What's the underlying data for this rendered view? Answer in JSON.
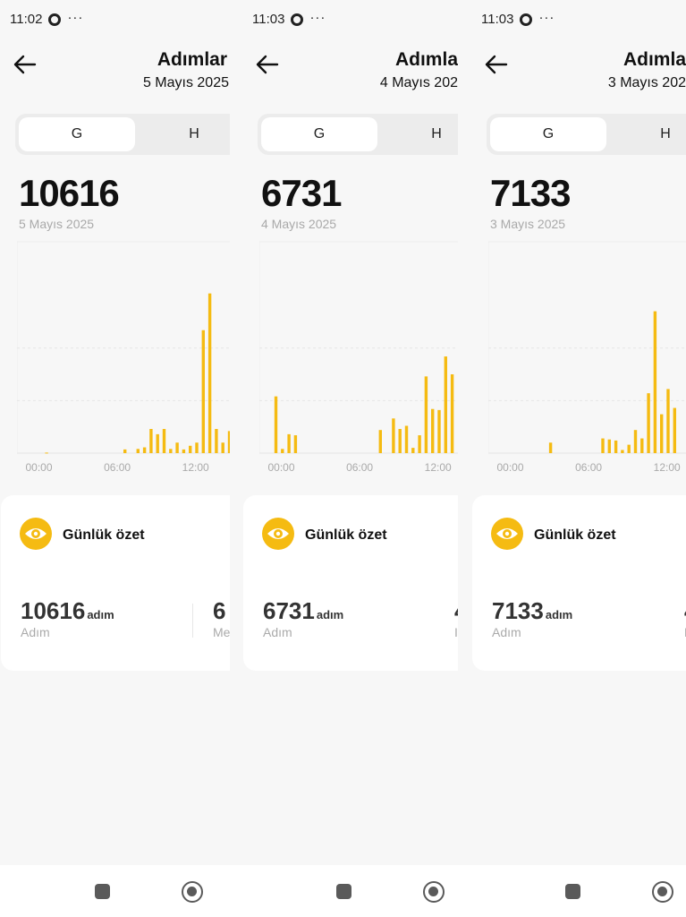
{
  "accent_color": "#f5bb12",
  "panels": [
    {
      "status_time": "11:02",
      "status_dots": "···",
      "title": "Adımlar",
      "date": "5 Mayıs 2025",
      "tabs": {
        "day": "G",
        "week": "H"
      },
      "steps": "10616",
      "steps_date": "5 Mayıs 2025",
      "summary": {
        "title": "Günlük özet",
        "steps_value": "10616",
        "steps_unit": "adım",
        "steps_label": "Adım",
        "second_value": "6",
        "second_label": "Me"
      }
    },
    {
      "status_time": "11:03",
      "status_dots": "···",
      "title": "Adımla",
      "date": "4 Mayıs 202",
      "tabs": {
        "day": "G",
        "week": "H"
      },
      "steps": "6731",
      "steps_date": "4 Mayıs 2025",
      "summary": {
        "title": "Günlük özet",
        "steps_value": "6731",
        "steps_unit": "adım",
        "steps_label": "Adım",
        "second_value": "4",
        "second_label": "I"
      }
    },
    {
      "status_time": "11:03",
      "status_dots": "···",
      "title": "Adımla",
      "date": "3 Mayıs 202",
      "tabs": {
        "day": "G",
        "week": "H"
      },
      "steps": "7133",
      "steps_date": "3 Mayıs 2025",
      "summary": {
        "title": "Günlük özet",
        "steps_value": "7133",
        "steps_unit": "adım",
        "steps_label": "Adım",
        "second_value": "4",
        "second_label": "N"
      }
    }
  ],
  "chart_data": [
    {
      "type": "bar",
      "x_unit": "hour",
      "x_tick_labels": [
        "00:00",
        "06:00",
        "12:00"
      ],
      "x_ticks_hours": [
        0,
        6,
        12
      ],
      "y_range": [
        0,
        1500
      ],
      "grid": true,
      "x": [
        1,
        7,
        8,
        8.5,
        9,
        9.5,
        10,
        10.5,
        11,
        11.5,
        12,
        12.5,
        13,
        13.5,
        14,
        14.5,
        15,
        15.5
      ],
      "values": [
        5,
        35,
        40,
        55,
        230,
        180,
        230,
        40,
        100,
        35,
        70,
        100,
        1170,
        1520,
        230,
        100,
        210,
        250
      ]
    },
    {
      "type": "bar",
      "x_unit": "hour",
      "x_tick_labels": [
        "00:00",
        "06:00",
        "12:00"
      ],
      "x_ticks_hours": [
        0,
        6,
        12
      ],
      "y_range": [
        0,
        1500
      ],
      "grid": true,
      "x": [
        0,
        0.5,
        1,
        1.5,
        8,
        9,
        9.5,
        10,
        10.5,
        11,
        11.5,
        12,
        12.5,
        13,
        13.5
      ],
      "values": [
        540,
        40,
        180,
        170,
        220,
        330,
        230,
        260,
        50,
        170,
        730,
        420,
        410,
        920,
        750
      ]
    },
    {
      "type": "bar",
      "x_unit": "hour",
      "x_tick_labels": [
        "00:00",
        "06:00",
        "12:00"
      ],
      "x_ticks_hours": [
        0,
        6,
        12
      ],
      "y_range": [
        0,
        1500
      ],
      "grid": true,
      "x": [
        3.5,
        7.5,
        8,
        8.5,
        9,
        9.5,
        10,
        10.5,
        11,
        11.5,
        12,
        12.5,
        13
      ],
      "values": [
        100,
        140,
        130,
        120,
        30,
        80,
        220,
        140,
        570,
        1350,
        370,
        610,
        430
      ]
    }
  ]
}
